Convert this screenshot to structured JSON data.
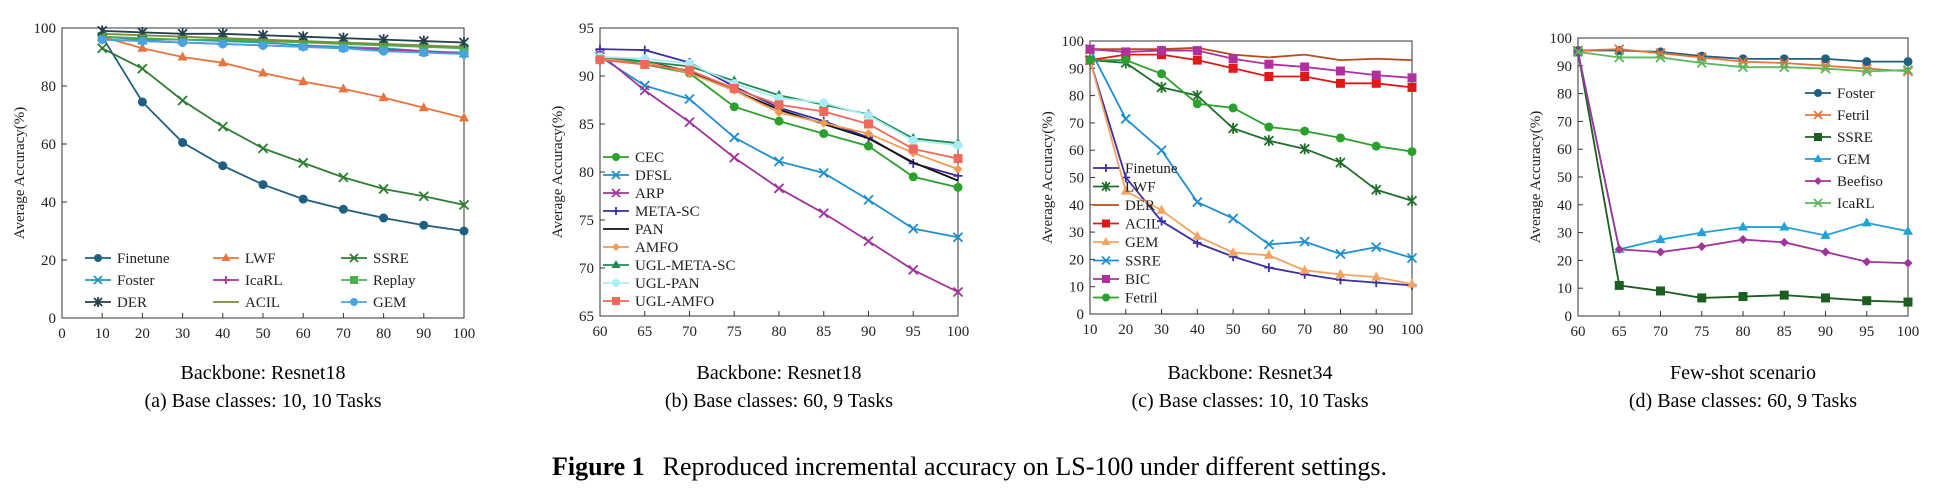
{
  "figure": {
    "label": "Figure 1",
    "caption": "Reproduced incremental accuracy on LS-100 under different settings."
  },
  "chart_data": [
    {
      "type": "line",
      "xlabel": "Backbone: Resnet18",
      "subcaption": "(a) Base classes: 10, 10 Tasks",
      "ylabel": "Average Accuracy(%)",
      "xlim": [
        0,
        100
      ],
      "ylim": [
        0,
        100
      ],
      "xticks": [
        0,
        10,
        20,
        30,
        40,
        50,
        60,
        70,
        80,
        90,
        100
      ],
      "yticks": [
        0,
        20,
        40,
        60,
        80,
        100
      ],
      "grid": false,
      "legend": "bottom-inside, 3 columns",
      "x": [
        10,
        20,
        30,
        40,
        50,
        60,
        70,
        80,
        90,
        100
      ],
      "series": [
        {
          "name": "Finetune",
          "color": "#1f5f7f",
          "marker": "circle",
          "values": [
            97,
            74.5,
            60.5,
            52.5,
            46,
            41,
            37.5,
            34.5,
            32,
            30
          ]
        },
        {
          "name": "LWF",
          "color": "#e8743b",
          "marker": "triangle",
          "values": [
            97,
            93,
            90,
            88,
            84.5,
            81.5,
            79,
            76,
            72.5,
            69
          ]
        },
        {
          "name": "SSRE",
          "color": "#2e7d32",
          "marker": "x",
          "values": [
            93,
            86,
            75,
            66,
            58.5,
            53.5,
            48.5,
            44.5,
            42,
            39
          ]
        },
        {
          "name": "Foster",
          "color": "#2596be",
          "marker": "x",
          "values": [
            97,
            96,
            96,
            95.5,
            95,
            94,
            93.5,
            93,
            92,
            91.5
          ]
        },
        {
          "name": "IcaRL",
          "color": "#b0309e",
          "marker": "plus",
          "values": [
            96,
            95.5,
            95,
            94.5,
            94,
            93.5,
            93,
            92.5,
            92,
            91
          ]
        },
        {
          "name": "Replay",
          "color": "#4caf50",
          "marker": "square",
          "values": [
            97,
            96.5,
            96,
            96,
            95.5,
            95,
            94.5,
            94,
            93.5,
            93
          ]
        },
        {
          "name": "DER",
          "color": "#243f4f",
          "marker": "asterisk",
          "values": [
            99,
            98.5,
            98,
            98,
            97.5,
            97,
            96.5,
            96,
            95.5,
            95
          ]
        },
        {
          "name": "ACIL",
          "color": "#7a8c3a",
          "marker": "line",
          "values": [
            98,
            97.5,
            97,
            96.5,
            96,
            95.5,
            95,
            94.5,
            94,
            93.5
          ]
        },
        {
          "name": "GEM",
          "color": "#4aa3df",
          "marker": "circle",
          "values": [
            96,
            95.5,
            95,
            94.5,
            94,
            93.5,
            93,
            92,
            91.5,
            91
          ]
        }
      ]
    },
    {
      "type": "line",
      "xlabel": "Backbone: Resnet18",
      "subcaption": "(b) Base classes: 60, 9 Tasks",
      "ylabel": "Average Accuracy(%)",
      "xlim": [
        60,
        100
      ],
      "ylim": [
        65,
        95
      ],
      "xticks": [
        60,
        65,
        70,
        75,
        80,
        85,
        90,
        95,
        100
      ],
      "yticks": [
        65,
        70,
        75,
        80,
        85,
        90,
        95
      ],
      "grid": false,
      "legend": "left-inside",
      "x": [
        60,
        65,
        70,
        75,
        80,
        85,
        90,
        95,
        100
      ],
      "series": [
        {
          "name": "CEC",
          "color": "#2ca02c",
          "marker": "circle",
          "values": [
            92,
            91.2,
            90.3,
            86.8,
            85.3,
            84,
            82.7,
            79.5,
            78.4
          ]
        },
        {
          "name": "DFSL",
          "color": "#1f8fce",
          "marker": "x",
          "values": [
            92,
            89,
            87.6,
            83.6,
            81.1,
            79.9,
            77.1,
            74.1,
            73.2
          ]
        },
        {
          "name": "ARP",
          "color": "#a0349c",
          "marker": "x",
          "values": [
            92.3,
            88.5,
            85.2,
            81.5,
            78.3,
            75.7,
            72.8,
            69.8,
            67.5
          ]
        },
        {
          "name": "META-SC",
          "color": "#3a2fa3",
          "marker": "plus",
          "values": [
            92.8,
            92.7,
            91.4,
            88.9,
            86.7,
            85.3,
            83.6,
            80.9,
            79.6
          ]
        },
        {
          "name": "PAN",
          "color": "#111111",
          "marker": "line",
          "values": [
            92,
            91.5,
            90.5,
            88.5,
            86.5,
            85,
            83.5,
            81,
            79.1
          ]
        },
        {
          "name": "AMFO",
          "color": "#f29a50",
          "marker": "diamond",
          "values": [
            91.8,
            91.5,
            90.3,
            88.5,
            86.2,
            85.1,
            84,
            82,
            80.3
          ]
        },
        {
          "name": "UGL-META-SC",
          "color": "#1d8a4e",
          "marker": "triangle",
          "values": [
            92,
            91.5,
            91,
            89.5,
            88,
            87,
            86,
            83.5,
            83
          ]
        },
        {
          "name": "UGL-PAN",
          "color": "#a9ecf5",
          "marker": "circle",
          "values": [
            92,
            91.8,
            91.3,
            89.2,
            87.7,
            87.2,
            85.9,
            83.3,
            82.8
          ]
        },
        {
          "name": "UGL-AMFO",
          "color": "#ef6a5a",
          "marker": "square",
          "values": [
            91.7,
            91.2,
            90.6,
            88.7,
            87,
            86.3,
            85,
            82.4,
            81.4
          ]
        }
      ]
    },
    {
      "type": "line",
      "xlabel": "Backbone: Resnet34",
      "subcaption": "(c) Base classes: 10, 10 Tasks",
      "ylabel": "Average Accuracy(%)",
      "xlim": [
        10,
        100
      ],
      "ylim": [
        0,
        100
      ],
      "xticks": [
        10,
        20,
        30,
        40,
        50,
        60,
        70,
        80,
        90,
        100
      ],
      "yticks": [
        0,
        10,
        20,
        30,
        40,
        50,
        60,
        70,
        80,
        90,
        100
      ],
      "grid": false,
      "legend": "left-inside",
      "x": [
        10,
        20,
        30,
        40,
        50,
        60,
        70,
        80,
        90,
        100
      ],
      "series": [
        {
          "name": "Finetune",
          "color": "#3a2fa3",
          "marker": "plus",
          "values": [
            93,
            50,
            34,
            26,
            21,
            17,
            14.5,
            12.5,
            11.5,
            10.5
          ]
        },
        {
          "name": "LWF",
          "color": "#1f6f2a",
          "marker": "asterisk",
          "values": [
            93,
            92,
            83,
            80,
            68,
            63.5,
            60.5,
            55.5,
            45.5,
            41.5
          ]
        },
        {
          "name": "DER",
          "color": "#b84a1e",
          "marker": "line",
          "values": [
            97,
            97,
            97,
            97.5,
            95,
            94,
            95,
            93,
            93.5,
            93
          ]
        },
        {
          "name": "ACIL",
          "color": "#e01818",
          "marker": "square",
          "values": [
            93,
            95,
            95,
            93,
            90,
            87,
            87,
            84.5,
            84.5,
            83
          ]
        },
        {
          "name": "GEM",
          "color": "#f4a460",
          "marker": "triangle",
          "values": [
            93,
            45,
            38,
            28.5,
            22.5,
            21.5,
            16,
            14.5,
            13.5,
            11
          ]
        },
        {
          "name": "SSRE",
          "color": "#1f8fce",
          "marker": "x",
          "values": [
            97,
            71.5,
            60,
            41,
            35,
            25.5,
            26.5,
            22,
            24.5,
            20.5
          ]
        },
        {
          "name": "BIC",
          "color": "#b0309e",
          "marker": "square",
          "values": [
            97,
            96,
            96.5,
            96.5,
            93.5,
            91.5,
            90.5,
            89,
            87.5,
            86.5
          ]
        },
        {
          "name": "Fetril",
          "color": "#2ca02c",
          "marker": "circle",
          "values": [
            93,
            93,
            88,
            77,
            75.5,
            68.5,
            67,
            64.5,
            61.5,
            59.5
          ]
        }
      ]
    },
    {
      "type": "line",
      "xlabel": "Few-shot scenario",
      "subcaption": "(d) Base classes: 60, 9 Tasks",
      "ylabel": "Average Accuracy(%)",
      "xlim": [
        60,
        100
      ],
      "ylim": [
        0,
        100
      ],
      "xticks": [
        60,
        65,
        70,
        75,
        80,
        85,
        90,
        95,
        100
      ],
      "yticks": [
        0,
        10,
        20,
        30,
        40,
        50,
        60,
        70,
        80,
        90,
        100
      ],
      "grid": false,
      "legend": "right-inside",
      "x": [
        60,
        65,
        70,
        75,
        80,
        85,
        90,
        95,
        100
      ],
      "series": [
        {
          "name": "Foster",
          "color": "#1f5f7f",
          "marker": "circle",
          "values": [
            95.5,
            95.5,
            95,
            93.5,
            92.5,
            92.5,
            92.5,
            91.5,
            91.5
          ]
        },
        {
          "name": "Fetril",
          "color": "#e8743b",
          "marker": "x",
          "values": [
            95.5,
            96,
            94.5,
            93,
            91.5,
            91,
            90,
            89,
            88
          ]
        },
        {
          "name": "SSRE",
          "color": "#1b5e20",
          "marker": "square",
          "values": [
            95,
            11,
            9,
            6.5,
            7,
            7.5,
            6.5,
            5.5,
            5
          ]
        },
        {
          "name": "GEM",
          "color": "#1fa2d8",
          "marker": "triangle",
          "values": [
            95,
            24,
            27.5,
            30,
            32,
            32,
            29,
            33.5,
            30.5
          ]
        },
        {
          "name": "Beefiso",
          "color": "#a0349c",
          "marker": "diamond",
          "values": [
            95,
            24,
            23,
            25,
            27.5,
            26.5,
            23,
            19.5,
            19
          ]
        },
        {
          "name": "IcaRL",
          "color": "#5cb85c",
          "marker": "x",
          "values": [
            95,
            93,
            93,
            91,
            89.5,
            89.5,
            89,
            88,
            88.5
          ]
        }
      ]
    }
  ]
}
